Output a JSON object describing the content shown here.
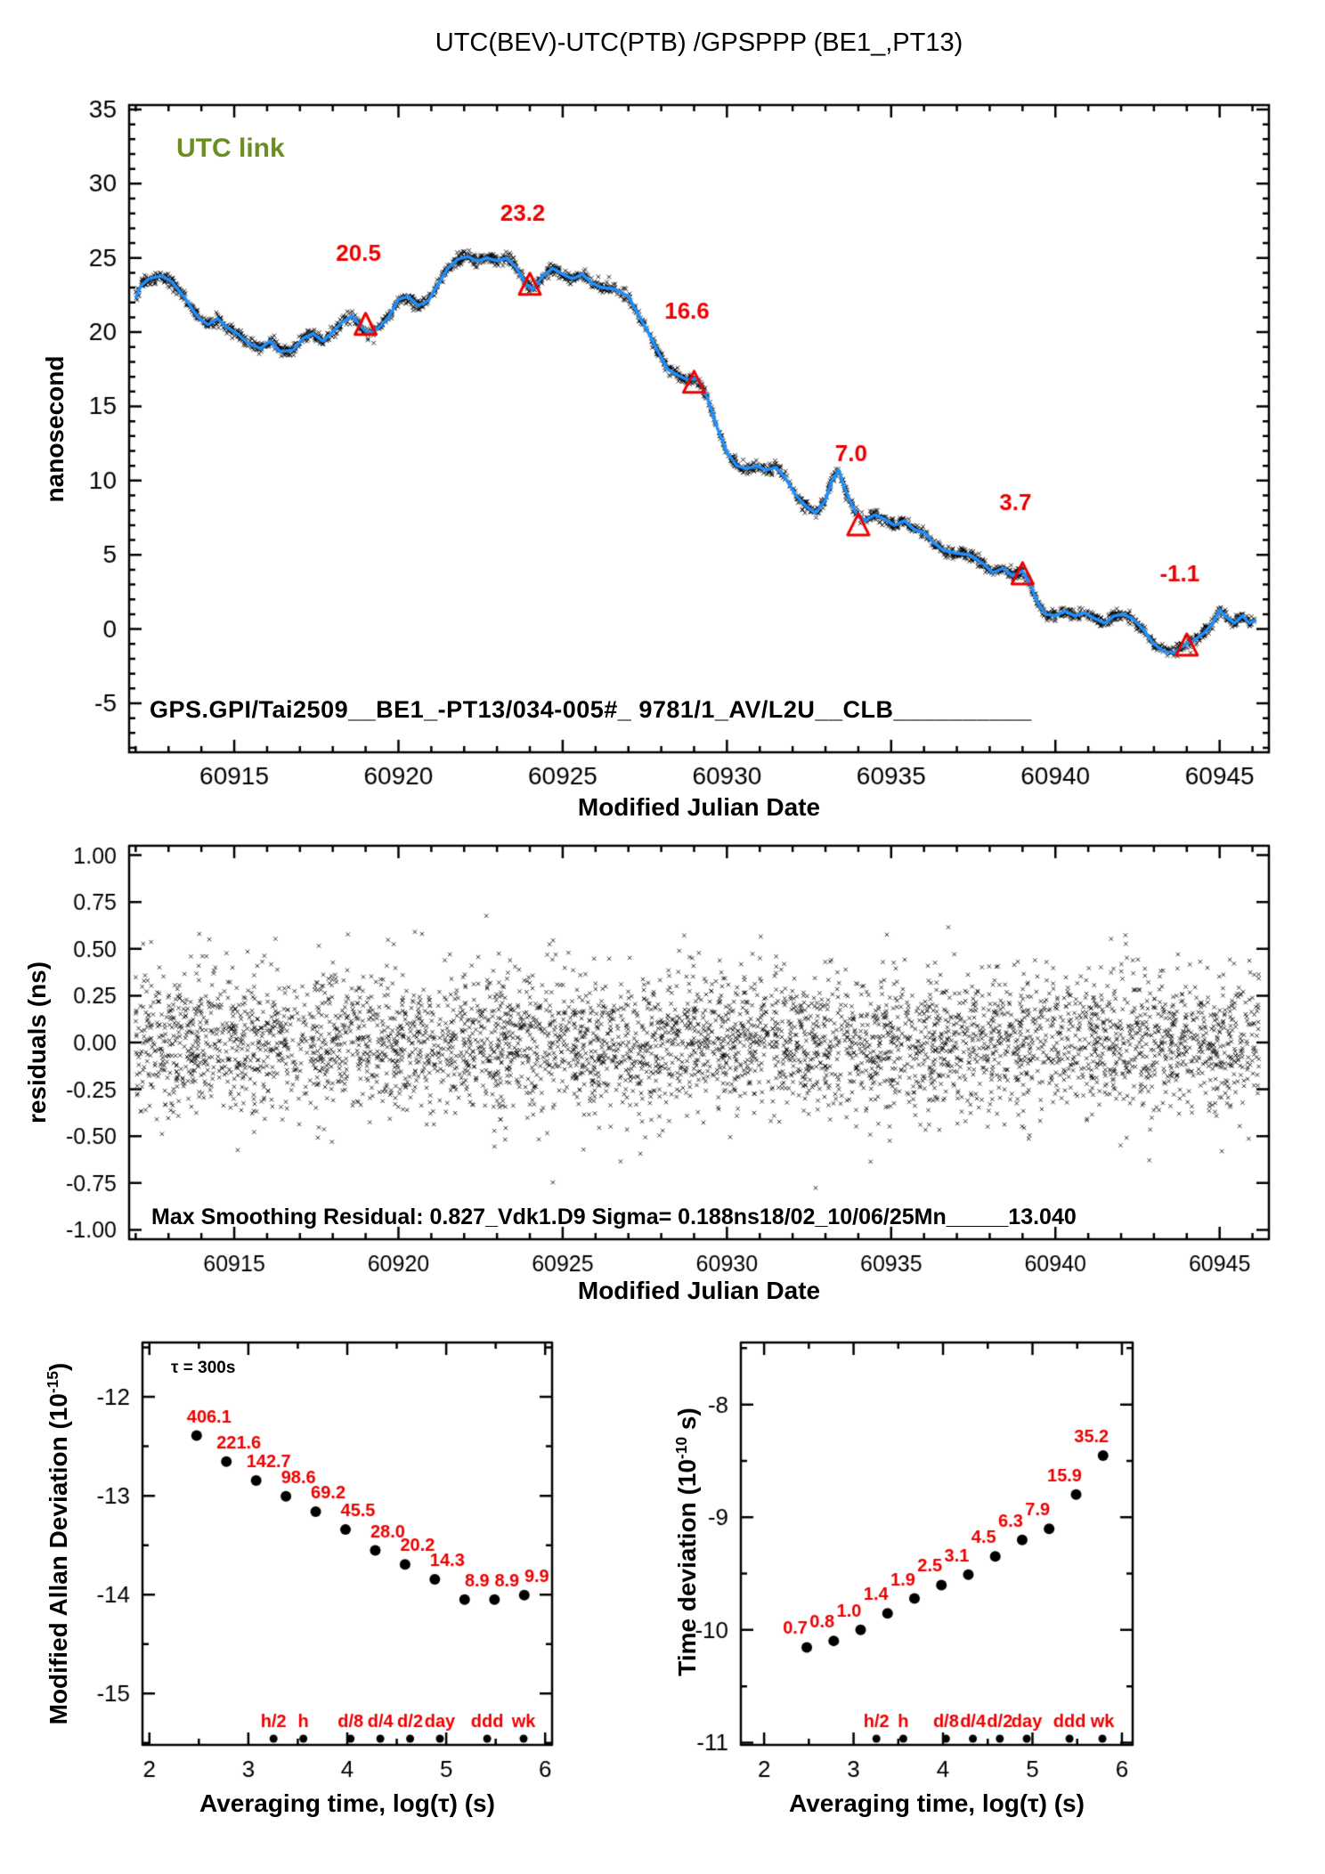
{
  "page": {
    "title": "UTC(BEV)-UTC(PTB)  /GPSPPP  (BE1_,PT13)"
  },
  "colors": {
    "accent_red": "#ee0000",
    "curve_blue": "#1E90FF",
    "utc_link_green": "#6B8E23",
    "marker_black": "#000000"
  },
  "chart_data": [
    {
      "id": "utc-link-timeseries",
      "type": "line",
      "title": "UTC(BEV)-UTC(PTB)  /GPSPPP  (BE1_,PT13)",
      "series_label": "UTC link",
      "ylabel": "nanosecond",
      "xlabel": "Modified Julian Date",
      "annotation": "GPS.GPI/Tai2509__BE1_-PT13/034-005#_  9781/1_AV/L2U__CLB__________",
      "xlim": [
        60911.8,
        60946.5
      ],
      "ylim": [
        -8.3,
        35.3
      ],
      "xticks": {
        "values": [
          60915,
          60920,
          60925,
          60930,
          60935,
          60940,
          60945
        ],
        "labels": [
          "60915",
          "60920",
          "60925",
          "60930",
          "60935",
          "60940",
          "60945"
        ]
      },
      "yticks": {
        "values": [
          -5,
          0,
          5,
          10,
          15,
          20,
          25,
          30,
          35
        ],
        "labels": [
          "-5",
          "0",
          "5",
          "10",
          "15",
          "20",
          "25",
          "30",
          "35"
        ]
      },
      "x_minor_step": 1,
      "y_minor_step": 1,
      "noise_sigma_ns": 0.2,
      "triangle_points": [
        {
          "mjd": 60919,
          "value": 20.5,
          "label": "20.5"
        },
        {
          "mjd": 60924,
          "value": 23.2,
          "label": "23.2"
        },
        {
          "mjd": 60929,
          "value": 16.6,
          "label": "16.6"
        },
        {
          "mjd": 60934,
          "value": 7.0,
          "label": "7.0"
        },
        {
          "mjd": 60939,
          "value": 3.7,
          "label": "3.7"
        },
        {
          "mjd": 60944,
          "value": -1.1,
          "label": "-1.1"
        }
      ],
      "smoothed_curve": [
        [
          60912.0,
          22.3
        ],
        [
          60912.15,
          23.1
        ],
        [
          60912.4,
          23.6
        ],
        [
          60912.8,
          23.8
        ],
        [
          60913.1,
          23.4
        ],
        [
          60913.5,
          22.3
        ],
        [
          60913.9,
          21.0
        ],
        [
          60914.2,
          20.5
        ],
        [
          60914.5,
          20.9
        ],
        [
          60914.8,
          20.3
        ],
        [
          60915.1,
          19.9
        ],
        [
          60915.4,
          19.3
        ],
        [
          60915.8,
          18.9
        ],
        [
          60916.1,
          19.4
        ],
        [
          60916.4,
          18.7
        ],
        [
          60916.8,
          18.8
        ],
        [
          60917.1,
          19.6
        ],
        [
          60917.4,
          19.9
        ],
        [
          60917.7,
          19.4
        ],
        [
          60918.0,
          20.0
        ],
        [
          60918.3,
          20.7
        ],
        [
          60918.6,
          21.1
        ],
        [
          60918.9,
          20.3
        ],
        [
          60919.1,
          19.9
        ],
        [
          60919.4,
          20.3
        ],
        [
          60919.7,
          21.0
        ],
        [
          60920.0,
          22.2
        ],
        [
          60920.3,
          22.4
        ],
        [
          60920.6,
          21.8
        ],
        [
          60920.9,
          22.1
        ],
        [
          60921.2,
          23.2
        ],
        [
          60921.5,
          24.3
        ],
        [
          60921.8,
          24.9
        ],
        [
          60922.1,
          25.1
        ],
        [
          60922.4,
          24.8
        ],
        [
          60922.7,
          25.0
        ],
        [
          60923.0,
          24.8
        ],
        [
          60923.3,
          25.0
        ],
        [
          60923.6,
          24.3
        ],
        [
          60923.9,
          23.2
        ],
        [
          60924.1,
          22.9
        ],
        [
          60924.4,
          23.8
        ],
        [
          60924.7,
          24.3
        ],
        [
          60925.0,
          23.9
        ],
        [
          60925.3,
          23.6
        ],
        [
          60925.6,
          23.9
        ],
        [
          60925.9,
          23.3
        ],
        [
          60926.2,
          23.0
        ],
        [
          60926.6,
          22.9
        ],
        [
          60927.0,
          22.4
        ],
        [
          60927.3,
          21.2
        ],
        [
          60927.6,
          20.0
        ],
        [
          60927.9,
          18.7
        ],
        [
          60928.2,
          17.5
        ],
        [
          60928.5,
          17.1
        ],
        [
          60928.8,
          16.8
        ],
        [
          60929.1,
          16.9
        ],
        [
          60929.4,
          15.6
        ],
        [
          60929.7,
          13.6
        ],
        [
          60930.0,
          11.9
        ],
        [
          60930.3,
          11.0
        ],
        [
          60930.6,
          10.8
        ],
        [
          60930.9,
          11.0
        ],
        [
          60931.2,
          10.7
        ],
        [
          60931.5,
          10.9
        ],
        [
          60931.8,
          10.1
        ],
        [
          60932.1,
          9.0
        ],
        [
          60932.4,
          8.3
        ],
        [
          60932.7,
          7.8
        ],
        [
          60933.0,
          8.7
        ],
        [
          60933.2,
          10.0
        ],
        [
          60933.4,
          10.7
        ],
        [
          60933.6,
          9.4
        ],
        [
          60933.9,
          7.9
        ],
        [
          60934.2,
          7.3
        ],
        [
          60934.5,
          7.7
        ],
        [
          60934.8,
          7.4
        ],
        [
          60935.1,
          7.0
        ],
        [
          60935.4,
          7.3
        ],
        [
          60935.7,
          6.7
        ],
        [
          60936.0,
          6.5
        ],
        [
          60936.3,
          5.8
        ],
        [
          60936.6,
          5.3
        ],
        [
          60937.0,
          5.1
        ],
        [
          60937.4,
          5.0
        ],
        [
          60937.8,
          4.4
        ],
        [
          60938.1,
          3.8
        ],
        [
          60938.4,
          4.1
        ],
        [
          60938.7,
          3.6
        ],
        [
          60939.0,
          3.9
        ],
        [
          60939.2,
          3.2
        ],
        [
          60939.45,
          1.8
        ],
        [
          60939.7,
          1.0
        ],
        [
          60940.0,
          0.9
        ],
        [
          60940.3,
          1.2
        ],
        [
          60940.6,
          0.9
        ],
        [
          60940.9,
          1.1
        ],
        [
          60941.2,
          0.7
        ],
        [
          60941.5,
          0.4
        ],
        [
          60941.8,
          0.9
        ],
        [
          60942.1,
          1.0
        ],
        [
          60942.4,
          0.6
        ],
        [
          60942.7,
          -0.1
        ],
        [
          60943.0,
          -1.0
        ],
        [
          60943.3,
          -1.5
        ],
        [
          60943.6,
          -1.6
        ],
        [
          60943.9,
          -1.1
        ],
        [
          60944.2,
          -0.8
        ],
        [
          60944.5,
          -0.3
        ],
        [
          60944.8,
          0.4
        ],
        [
          60945.0,
          1.3
        ],
        [
          60945.2,
          0.8
        ],
        [
          60945.45,
          0.4
        ],
        [
          60945.7,
          0.9
        ],
        [
          60945.9,
          0.4
        ],
        [
          60946.1,
          0.6
        ]
      ]
    },
    {
      "id": "residuals",
      "type": "scatter",
      "ylabel": "residuals (ns)",
      "xlabel": "Modified Julian Date",
      "annotation": "Max Smoothing Residual: 0.827_Vdk1.D9  Sigma= 0.188ns18/02_10/06/25Mn_____13.040",
      "sigma_ns": 0.188,
      "max_residual_ns": 0.827,
      "xlim": [
        60911.8,
        60946.5
      ],
      "ylim": [
        -1.05,
        1.05
      ],
      "xticks": {
        "values": [
          60915,
          60920,
          60925,
          60930,
          60935,
          60940,
          60945
        ],
        "labels": [
          "60915",
          "60920",
          "60925",
          "60930",
          "60935",
          "60940",
          "60945"
        ]
      },
      "yticks": {
        "values": [
          1.0,
          0.75,
          0.5,
          0.25,
          0.0,
          -0.25,
          -0.5,
          -0.75,
          -1.0
        ],
        "labels": [
          "1.00",
          "0.75",
          "0.50",
          "0.25",
          "0.00",
          "-0.25",
          "-0.50",
          "-0.75",
          "-1.00"
        ]
      },
      "x_minor_step": 1,
      "n_points": 4600
    },
    {
      "id": "mdev",
      "type": "scatter",
      "ylabel_parts": [
        "Modified Allan Deviation (10",
        "-15",
        ")"
      ],
      "xlabel": "Averaging time, log(τ) (s)",
      "tau_note": "τ = 300s",
      "unit_exponent": -15,
      "xlim": [
        1.93,
        6.07
      ],
      "ylim": [
        -15.52,
        -11.45
      ],
      "xticks": {
        "values": [
          2,
          3,
          4,
          5,
          6
        ],
        "labels": [
          "2",
          "3",
          "4",
          "5",
          "6"
        ]
      },
      "yticks": {
        "values": [
          -12,
          -13,
          -14,
          -15
        ],
        "labels": [
          "-12",
          "-13",
          "-14",
          "-15"
        ]
      },
      "x_minor_step": 0.5,
      "y_minor_step": 0.5,
      "log_tau": [
        2.477,
        2.778,
        3.079,
        3.38,
        3.681,
        3.982,
        4.283,
        4.584,
        4.885,
        5.186,
        5.488,
        5.789
      ],
      "values": [
        406.1,
        221.6,
        142.7,
        98.6,
        69.2,
        45.5,
        28.0,
        20.2,
        14.3,
        8.9,
        8.9,
        9.9
      ],
      "value_labels": [
        "406.1",
        "221.6",
        "142.7",
        "98.6",
        "69.2",
        "45.5",
        "28.0",
        "20.2",
        "14.3",
        "8.9",
        "8.9",
        "9.9"
      ],
      "time_markers": {
        "labels": [
          "h/2",
          "h",
          "d/8",
          "d/4",
          "d/2",
          "day",
          "ddd",
          "wk"
        ],
        "log_tau": [
          3.255,
          3.556,
          4.033,
          4.334,
          4.635,
          4.936,
          5.414,
          5.782
        ]
      }
    },
    {
      "id": "tdev",
      "type": "scatter",
      "ylabel_parts": [
        "Time deviation (10",
        "-10",
        " s)"
      ],
      "xlabel": "Averaging time, log(τ) (s)",
      "unit_exponent": -10,
      "xlim": [
        1.74,
        6.12
      ],
      "ylim": [
        -11.02,
        -7.45
      ],
      "xticks": {
        "values": [
          2,
          3,
          4,
          5,
          6
        ],
        "labels": [
          "2",
          "3",
          "4",
          "5",
          "6"
        ]
      },
      "yticks": {
        "values": [
          -8,
          -9,
          -10,
          -11
        ],
        "labels": [
          "-8",
          "-9",
          "-10",
          "-11"
        ]
      },
      "x_minor_step": 0.5,
      "y_minor_step": 0.5,
      "log_tau": [
        2.477,
        2.778,
        3.079,
        3.38,
        3.681,
        3.982,
        4.283,
        4.584,
        4.885,
        5.186,
        5.488,
        5.789
      ],
      "values": [
        0.7,
        0.8,
        1.0,
        1.4,
        1.9,
        2.5,
        3.1,
        4.5,
        6.3,
        7.9,
        15.9,
        35.2
      ],
      "value_labels": [
        "0.7",
        "0.8",
        "1.0",
        "1.4",
        "1.9",
        "2.5",
        "3.1",
        "4.5",
        "6.3",
        "7.9",
        "15.9",
        "35.2"
      ],
      "time_markers": {
        "labels": [
          "h/2",
          "h",
          "d/8",
          "d/4",
          "d/2",
          "day",
          "ddd",
          "wk"
        ],
        "log_tau": [
          3.255,
          3.556,
          4.033,
          4.334,
          4.635,
          4.936,
          5.414,
          5.782
        ]
      }
    }
  ]
}
